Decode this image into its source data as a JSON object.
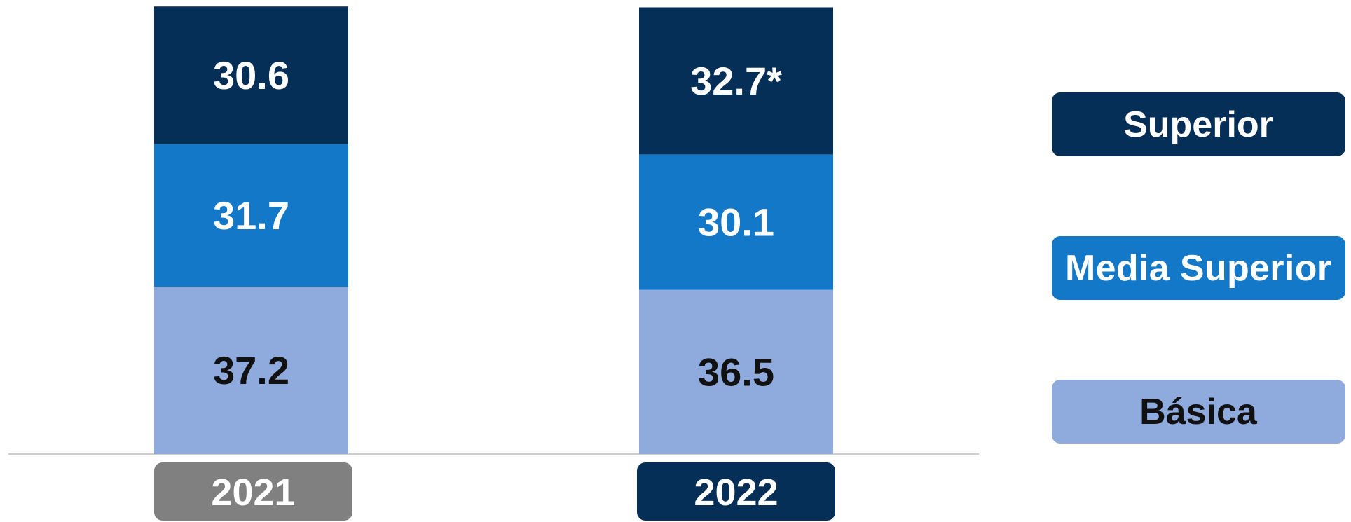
{
  "chart_data": {
    "type": "stacked_bar",
    "categories": [
      "2021",
      "2022"
    ],
    "category_colors": [
      "#808080",
      "#062f57"
    ],
    "series": [
      {
        "name": "Básica",
        "color": "#8faadc",
        "values": [
          37.2,
          36.5
        ]
      },
      {
        "name": "Media Superior",
        "color": "#1478c8",
        "values": [
          31.7,
          30.1
        ]
      },
      {
        "name": "Superior",
        "color": "#062f57",
        "values": [
          30.6,
          32.7
        ],
        "value_labels": [
          "30.6",
          "32.7*"
        ]
      }
    ],
    "ylim": [
      0,
      100
    ]
  }
}
